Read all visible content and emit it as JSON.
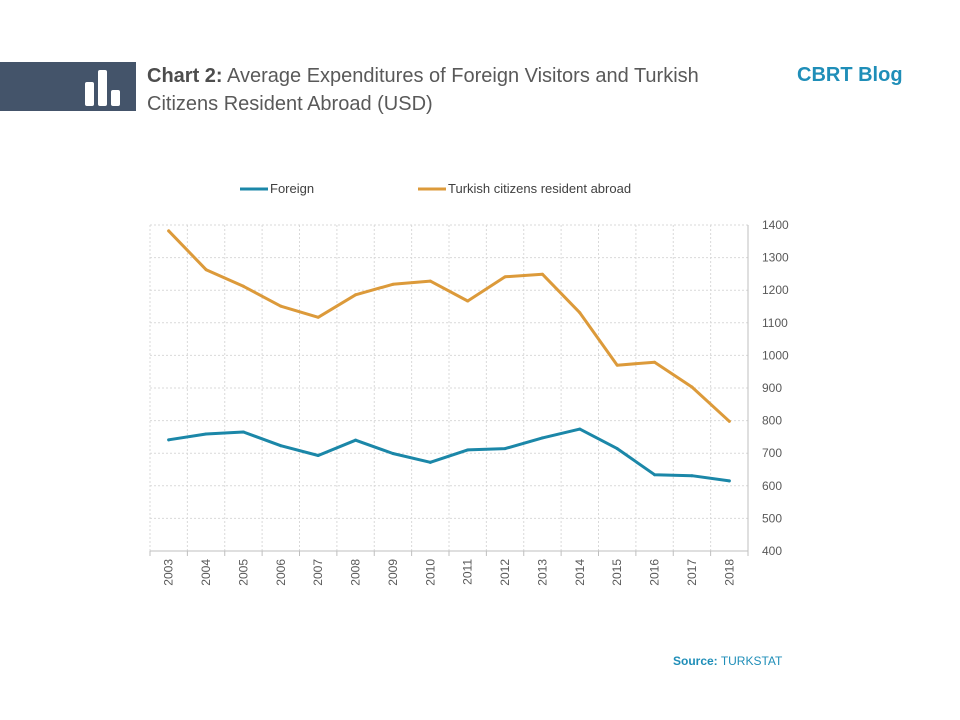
{
  "header": {
    "title_prefix": "Chart 2:",
    "title_text": "Average Expenditures of Foreign Visitors and Turkish Citizens Resident Abroad (USD)",
    "brand": "CBRT Blog",
    "logo_icon": "bar-chart-icon"
  },
  "footer": {
    "source_label": "Source:",
    "source_value": "TURKSTAT"
  },
  "colors": {
    "foreign": "#1b87a8",
    "citizens": "#dc9a3a",
    "header_bar": "#44546a",
    "brand": "#1f8eb8"
  },
  "chart_data": {
    "type": "line",
    "categories": [
      "2003",
      "2004",
      "2005",
      "2006",
      "2007",
      "2008",
      "2009",
      "2010",
      "2011",
      "2012",
      "2013",
      "2014",
      "2015",
      "2016",
      "2017",
      "2018"
    ],
    "series": [
      {
        "name": "Foreign",
        "color": "#1b87a8",
        "values": [
          741,
          759,
          765,
          723,
          693,
          740,
          699,
          672,
          710,
          714,
          747,
          774,
          714,
          634,
          631,
          615
        ]
      },
      {
        "name": "Turkish citizens resident abroad",
        "color": "#dc9a3a",
        "values": [
          1382,
          1263,
          1212,
          1151,
          1117,
          1186,
          1218,
          1228,
          1167,
          1241,
          1249,
          1131,
          970,
          979,
          903,
          798
        ]
      }
    ],
    "ylim": [
      400,
      1400
    ],
    "yticks": [
      400,
      500,
      600,
      700,
      800,
      900,
      1000,
      1100,
      1200,
      1300,
      1400
    ],
    "y_axis_side": "right",
    "grid": true,
    "legend_position": "top"
  }
}
